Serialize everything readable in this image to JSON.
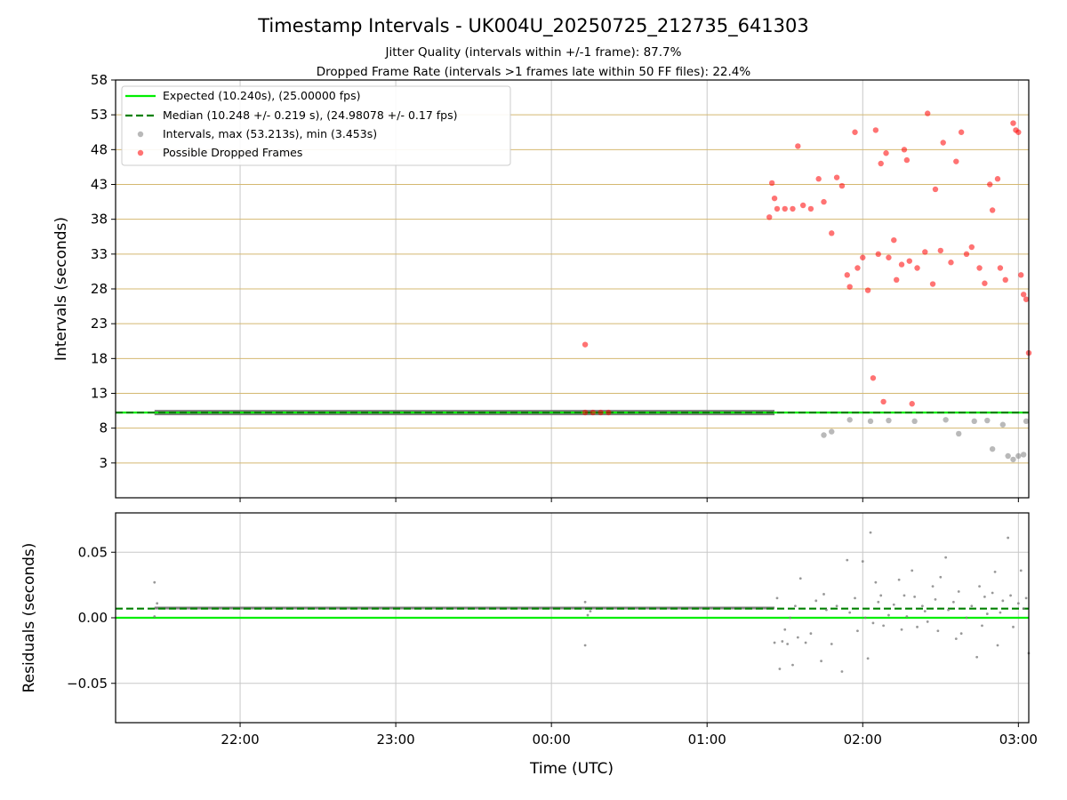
{
  "figure": {
    "title": "Timestamp Intervals - UK004U_20250725_212735_641303",
    "subtitle1": "Jitter Quality (intervals within +/-1 frame): 87.7%",
    "subtitle2": "Dropped Frame Rate (intervals >1 frames late within 50 FF files): 22.4%",
    "xlabel": "Time (UTC)",
    "colors": {
      "expected": "#00ee00",
      "median": "#008000",
      "intervals": "#808080",
      "dropped": "#ff0000",
      "hgrid_top": "#d4b870",
      "vgrid": "#c8c8c8"
    }
  },
  "chart_data": [
    {
      "type": "scatter",
      "panel": "intervals",
      "ylabel": "Intervals (seconds)",
      "xlim": [
        "21:12",
        "03:04"
      ],
      "ylim": [
        -2,
        58
      ],
      "yticks": [
        3,
        8,
        13,
        18,
        23,
        28,
        33,
        38,
        43,
        48,
        53,
        58
      ],
      "xticks": [
        "22:00",
        "23:00",
        "00:00",
        "01:00",
        "02:00",
        "03:00"
      ],
      "grid": "horizontal gold lines at y ticks, vertical gray lines at x ticks",
      "legend_position": "upper-left",
      "legend": [
        "Expected (10.240s), (25.00000 fps)",
        "Median (10.248 +/- 0.219 s), (24.98078 +/- 0.17 fps)",
        "Intervals, max (53.213s), min (3.453s)",
        "Possible Dropped Frames"
      ],
      "expected_value": 10.24,
      "median_value": 10.248,
      "series": [
        {
          "name": "Intervals, max (53.213s), min (3.453s)",
          "segments": [
            {
              "x_start": "21:27",
              "x_end": "01:26",
              "y": 10.24
            }
          ],
          "points": [
            [
              "01:45",
              7.0
            ],
            [
              "01:48",
              7.5
            ],
            [
              "01:55",
              9.2
            ],
            [
              "02:03",
              9.0
            ],
            [
              "02:10",
              9.1
            ],
            [
              "02:20",
              9.0
            ],
            [
              "02:32",
              9.2
            ],
            [
              "02:37",
              7.2
            ],
            [
              "02:43",
              9.0
            ],
            [
              "02:48",
              9.1
            ],
            [
              "02:50",
              5.0
            ],
            [
              "02:54",
              8.5
            ],
            [
              "02:56",
              4.0
            ],
            [
              "02:58",
              3.5
            ],
            [
              "03:00",
              4.0
            ],
            [
              "03:02",
              4.2
            ],
            [
              "03:03",
              9.0
            ]
          ]
        },
        {
          "name": "Possible Dropped Frames",
          "points": [
            [
              "00:13",
              20.0
            ],
            [
              "00:13",
              10.25
            ],
            [
              "00:16",
              10.25
            ],
            [
              "00:19",
              10.25
            ],
            [
              "00:22",
              10.25
            ],
            [
              "01:24",
              38.3
            ],
            [
              "01:25",
              43.2
            ],
            [
              "01:26",
              41.0
            ],
            [
              "01:27",
              39.5
            ],
            [
              "01:30",
              39.5
            ],
            [
              "01:33",
              39.5
            ],
            [
              "01:35",
              48.5
            ],
            [
              "01:37",
              40.0
            ],
            [
              "01:40",
              39.5
            ],
            [
              "01:43",
              43.8
            ],
            [
              "01:45",
              40.5
            ],
            [
              "01:48",
              36.0
            ],
            [
              "01:50",
              44.0
            ],
            [
              "01:52",
              42.8
            ],
            [
              "01:54",
              30.0
            ],
            [
              "01:55",
              28.3
            ],
            [
              "01:57",
              50.5
            ],
            [
              "01:58",
              31.0
            ],
            [
              "02:00",
              32.5
            ],
            [
              "02:02",
              27.8
            ],
            [
              "02:04",
              15.2
            ],
            [
              "02:05",
              50.8
            ],
            [
              "02:06",
              33.0
            ],
            [
              "02:07",
              46.0
            ],
            [
              "02:08",
              11.8
            ],
            [
              "02:09",
              47.5
            ],
            [
              "02:10",
              32.5
            ],
            [
              "02:12",
              35.0
            ],
            [
              "02:13",
              29.3
            ],
            [
              "02:15",
              31.5
            ],
            [
              "02:16",
              48.0
            ],
            [
              "02:17",
              46.5
            ],
            [
              "02:18",
              32.0
            ],
            [
              "02:19",
              11.5
            ],
            [
              "02:21",
              31.0
            ],
            [
              "02:24",
              33.3
            ],
            [
              "02:25",
              53.2
            ],
            [
              "02:27",
              28.7
            ],
            [
              "02:28",
              42.3
            ],
            [
              "02:30",
              33.5
            ],
            [
              "02:31",
              49.0
            ],
            [
              "02:34",
              31.8
            ],
            [
              "02:36",
              46.3
            ],
            [
              "02:38",
              50.5
            ],
            [
              "02:40",
              33.0
            ],
            [
              "02:42",
              34.0
            ],
            [
              "02:45",
              31.0
            ],
            [
              "02:47",
              28.8
            ],
            [
              "02:49",
              43.0
            ],
            [
              "02:50",
              39.3
            ],
            [
              "02:52",
              43.8
            ],
            [
              "02:53",
              31.0
            ],
            [
              "02:55",
              29.3
            ],
            [
              "02:58",
              51.8
            ],
            [
              "02:59",
              50.8
            ],
            [
              "03:00",
              50.5
            ],
            [
              "03:01",
              30.0
            ],
            [
              "03:02",
              27.2
            ],
            [
              "03:03",
              26.5
            ],
            [
              "03:04",
              18.8
            ],
            [
              "03:05",
              29.5
            ],
            [
              "03:06",
              45.8
            ],
            [
              "03:07",
              48.0
            ],
            [
              "03:09",
              43.2
            ],
            [
              "03:10",
              34.0
            ],
            [
              "03:11",
              29.5
            ],
            [
              "03:12",
              28.5
            ],
            [
              "03:13",
              30.0
            ],
            [
              "03:15",
              31.0
            ],
            [
              "03:16",
              33.0
            ],
            [
              "03:17",
              29.5
            ],
            [
              "03:18",
              34.0
            ]
          ]
        }
      ]
    },
    {
      "type": "scatter",
      "panel": "residuals",
      "ylabel": "Residuals (seconds)",
      "ylim": [
        -0.08,
        0.08
      ],
      "yticks": [
        -0.05,
        0.0,
        0.05
      ],
      "ytick_labels": [
        "−0.05",
        "0.00",
        "0.05"
      ],
      "xticks": [
        "22:00",
        "23:00",
        "00:00",
        "01:00",
        "02:00",
        "03:00"
      ],
      "grid": "horizontal and vertical light gray lines at ticks",
      "expected_value": 0.0,
      "median_value": 0.007,
      "series": [
        {
          "name": "Residuals",
          "segments": [
            {
              "x_start": "21:27",
              "x_end": "01:26",
              "y": 0.0075
            }
          ],
          "points": [
            [
              "21:27",
              0.027
            ],
            [
              "21:27",
              0.001
            ],
            [
              "21:28",
              0.011
            ],
            [
              "00:13",
              0.012
            ],
            [
              "00:13",
              -0.021
            ],
            [
              "00:14",
              0.002
            ],
            [
              "00:15",
              0.005
            ],
            [
              "01:26",
              -0.019
            ],
            [
              "01:27",
              0.015
            ],
            [
              "01:28",
              -0.039
            ],
            [
              "01:29",
              -0.018
            ],
            [
              "01:30",
              -0.009
            ],
            [
              "01:31",
              -0.02
            ],
            [
              "01:32",
              0.0
            ],
            [
              "01:33",
              -0.036
            ],
            [
              "01:34",
              0.009
            ],
            [
              "01:35",
              -0.015
            ],
            [
              "01:36",
              0.03
            ],
            [
              "01:38",
              -0.019
            ],
            [
              "01:40",
              -0.012
            ],
            [
              "01:42",
              0.013
            ],
            [
              "01:44",
              -0.033
            ],
            [
              "01:45",
              0.018
            ],
            [
              "01:46",
              0.006
            ],
            [
              "01:48",
              -0.02
            ],
            [
              "01:50",
              0.009
            ],
            [
              "01:52",
              -0.041
            ],
            [
              "01:54",
              0.044
            ],
            [
              "01:55",
              0.004
            ],
            [
              "01:57",
              0.015
            ],
            [
              "01:58",
              -0.01
            ],
            [
              "02:00",
              0.043
            ],
            [
              "02:01",
              0.0
            ],
            [
              "02:02",
              -0.031
            ],
            [
              "02:03",
              0.065
            ],
            [
              "02:04",
              -0.004
            ],
            [
              "02:05",
              0.027
            ],
            [
              "02:06",
              0.012
            ],
            [
              "02:07",
              0.017
            ],
            [
              "02:08",
              -0.006
            ],
            [
              "02:10",
              0.002
            ],
            [
              "02:12",
              0.01
            ],
            [
              "02:14",
              0.029
            ],
            [
              "02:15",
              -0.009
            ],
            [
              "02:16",
              0.017
            ],
            [
              "02:17",
              0.001
            ],
            [
              "02:19",
              0.036
            ],
            [
              "02:20",
              0.016
            ],
            [
              "02:21",
              -0.007
            ],
            [
              "02:23",
              0.009
            ],
            [
              "02:24",
              0.005
            ],
            [
              "02:25",
              -0.003
            ],
            [
              "02:27",
              0.024
            ],
            [
              "02:28",
              0.014
            ],
            [
              "02:29",
              -0.01
            ],
            [
              "02:30",
              0.031
            ],
            [
              "02:32",
              0.046
            ],
            [
              "02:33",
              0.006
            ],
            [
              "02:35",
              0.012
            ],
            [
              "02:36",
              -0.016
            ],
            [
              "02:37",
              0.02
            ],
            [
              "02:38",
              -0.012
            ],
            [
              "02:40",
              0.0
            ],
            [
              "02:42",
              0.009
            ],
            [
              "02:44",
              -0.03
            ],
            [
              "02:45",
              0.024
            ],
            [
              "02:46",
              -0.006
            ],
            [
              "02:47",
              0.016
            ],
            [
              "02:48",
              0.003
            ],
            [
              "02:50",
              0.019
            ],
            [
              "02:51",
              0.035
            ],
            [
              "02:52",
              -0.021
            ],
            [
              "02:53",
              0.004
            ],
            [
              "02:54",
              0.013
            ],
            [
              "02:56",
              0.061
            ],
            [
              "02:57",
              0.017
            ],
            [
              "02:58",
              -0.007
            ],
            [
              "03:00",
              0.011
            ],
            [
              "03:01",
              0.036
            ],
            [
              "03:02",
              0.007
            ],
            [
              "03:03",
              0.015
            ],
            [
              "03:04",
              -0.027
            ],
            [
              "03:05",
              0.004
            ],
            [
              "03:06",
              0.018
            ],
            [
              "03:07",
              -0.002
            ],
            [
              "03:09",
              0.036
            ],
            [
              "03:10",
              0.013
            ],
            [
              "03:11",
              -0.016
            ],
            [
              "03:12",
              0.014
            ],
            [
              "03:13",
              -0.028
            ],
            [
              "03:14",
              -0.002
            ]
          ]
        }
      ]
    }
  ]
}
